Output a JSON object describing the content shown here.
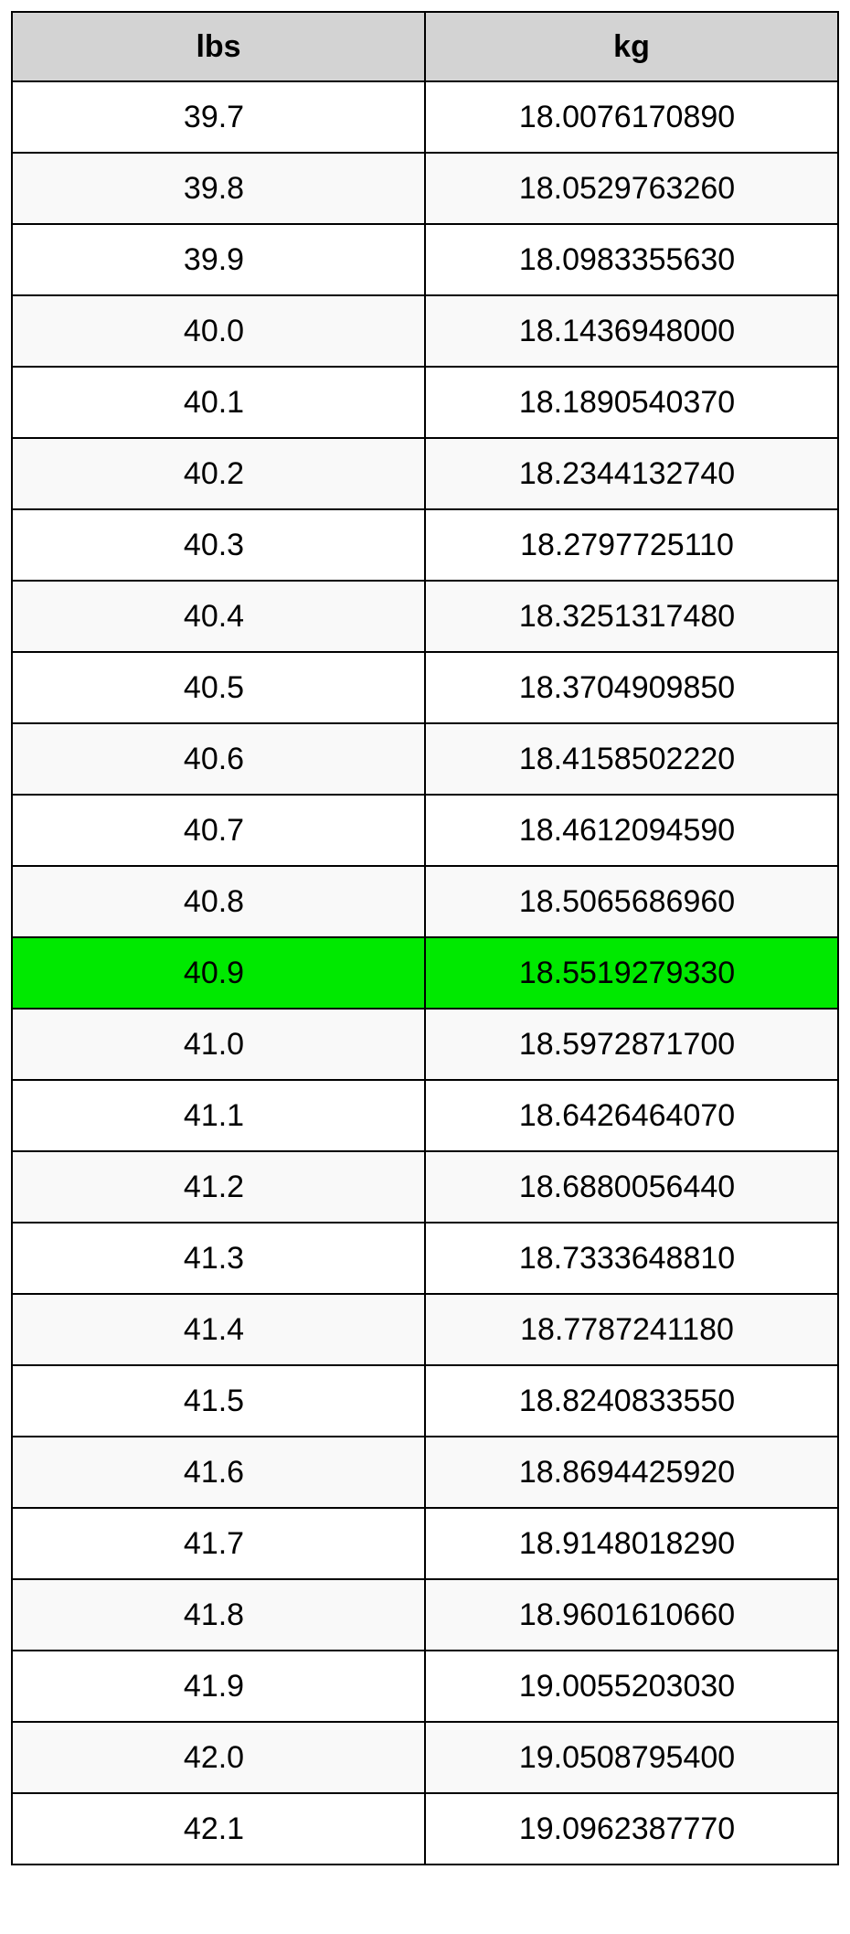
{
  "table": {
    "type": "table",
    "columns": [
      "lbs",
      "kg"
    ],
    "header_bg": "#d3d3d3",
    "border_color": "#000000",
    "row_bg_odd": "#ffffff",
    "row_bg_even": "#f9f9f9",
    "highlight_bg": "#00e900",
    "highlight_index": 12,
    "font_size": 34,
    "rows": [
      {
        "lbs": "39.7",
        "kg": "18.0076170890"
      },
      {
        "lbs": "39.8",
        "kg": "18.0529763260"
      },
      {
        "lbs": "39.9",
        "kg": "18.0983355630"
      },
      {
        "lbs": "40.0",
        "kg": "18.1436948000"
      },
      {
        "lbs": "40.1",
        "kg": "18.1890540370"
      },
      {
        "lbs": "40.2",
        "kg": "18.2344132740"
      },
      {
        "lbs": "40.3",
        "kg": "18.2797725110"
      },
      {
        "lbs": "40.4",
        "kg": "18.3251317480"
      },
      {
        "lbs": "40.5",
        "kg": "18.3704909850"
      },
      {
        "lbs": "40.6",
        "kg": "18.4158502220"
      },
      {
        "lbs": "40.7",
        "kg": "18.4612094590"
      },
      {
        "lbs": "40.8",
        "kg": "18.5065686960"
      },
      {
        "lbs": "40.9",
        "kg": "18.5519279330"
      },
      {
        "lbs": "41.0",
        "kg": "18.5972871700"
      },
      {
        "lbs": "41.1",
        "kg": "18.6426464070"
      },
      {
        "lbs": "41.2",
        "kg": "18.6880056440"
      },
      {
        "lbs": "41.3",
        "kg": "18.7333648810"
      },
      {
        "lbs": "41.4",
        "kg": "18.7787241180"
      },
      {
        "lbs": "41.5",
        "kg": "18.8240833550"
      },
      {
        "lbs": "41.6",
        "kg": "18.8694425920"
      },
      {
        "lbs": "41.7",
        "kg": "18.9148018290"
      },
      {
        "lbs": "41.8",
        "kg": "18.9601610660"
      },
      {
        "lbs": "41.9",
        "kg": "19.0055203030"
      },
      {
        "lbs": "42.0",
        "kg": "19.0508795400"
      },
      {
        "lbs": "42.1",
        "kg": "19.0962387770"
      }
    ]
  }
}
